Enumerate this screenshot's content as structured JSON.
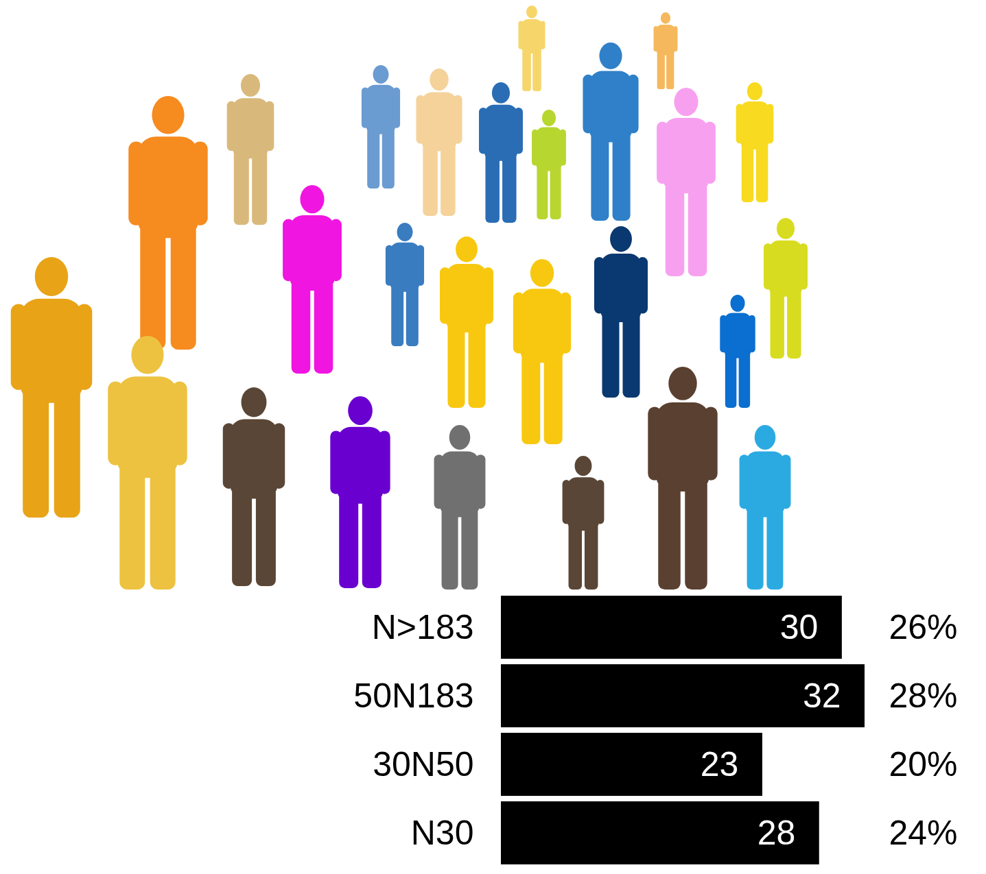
{
  "chart_data": {
    "type": "bar",
    "orientation": "horizontal",
    "categories": [
      "N>183",
      "50N183",
      "30N50",
      "N30"
    ],
    "values": [
      30,
      32,
      23,
      28
    ],
    "shares": [
      26,
      28,
      20,
      24
    ],
    "share_labels": [
      "26%",
      "28%",
      "20%",
      "24%"
    ],
    "color": "#000000",
    "xlim": [
      0,
      32
    ],
    "xticks": [],
    "grid": false,
    "data_labels": true,
    "tick_labels": "y"
  }
}
